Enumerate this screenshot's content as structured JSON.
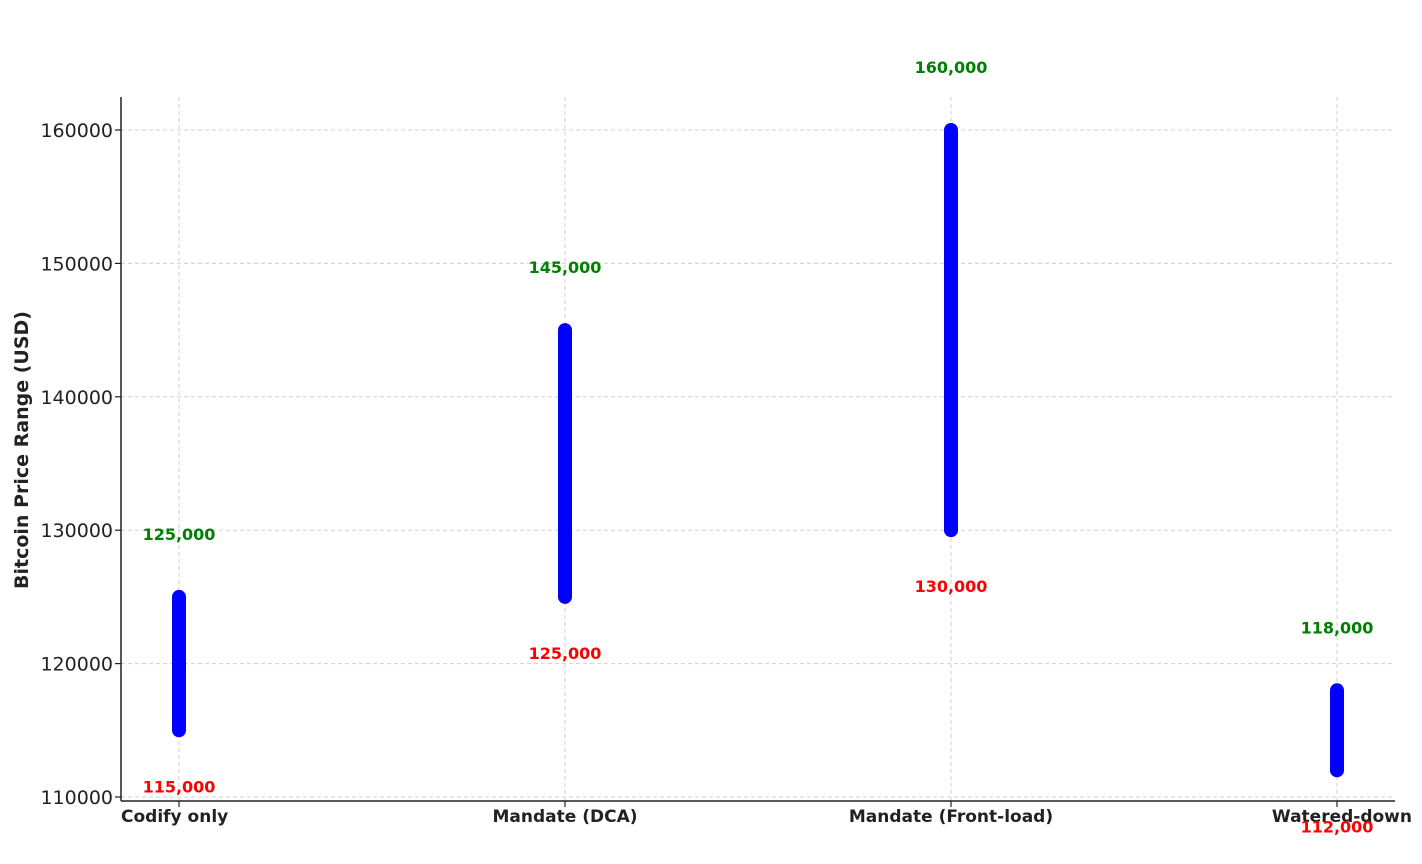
{
  "chart_data": {
    "type": "range",
    "title": "",
    "xlabel": "",
    "ylabel": "Bitcoin Price Range (USD)",
    "categories": [
      "Codify only",
      "Mandate (DCA)",
      "Mandate (Front-load)",
      "Watered-down"
    ],
    "low": [
      115000,
      125000,
      130000,
      112000
    ],
    "high": [
      125000,
      145000,
      160000,
      118000
    ],
    "low_labels": [
      "115,000",
      "125,000",
      "130,000",
      "112,000"
    ],
    "high_labels": [
      "125,000",
      "145,000",
      "160,000",
      "118,000"
    ],
    "yticks": [
      "110000",
      "120000",
      "130000",
      "140000",
      "150000",
      "160000"
    ],
    "ylim": [
      109800,
      162500
    ],
    "grid": true,
    "colors": {
      "bar": "#0000ff",
      "high_label": "#008000",
      "low_label": "#ff0000",
      "grid": "#d0d0d0",
      "axis": "#222222"
    }
  }
}
